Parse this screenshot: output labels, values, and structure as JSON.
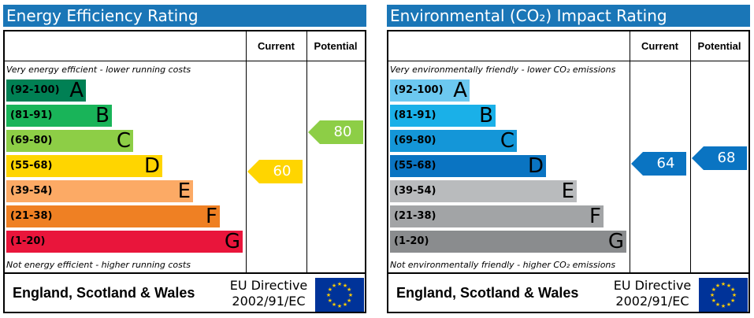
{
  "panels": [
    {
      "title": "Energy Efficiency Rating",
      "col_current": "Current",
      "col_potential": "Potential",
      "top_note": "Very energy efficient - lower running costs",
      "bottom_note": "Not energy efficient - higher running costs",
      "bands": [
        {
          "range": "(92-100)",
          "letter": "A",
          "color": "#008054"
        },
        {
          "range": "(81-91)",
          "letter": "B",
          "color": "#19b459"
        },
        {
          "range": "(69-80)",
          "letter": "C",
          "color": "#8dce46"
        },
        {
          "range": "(55-68)",
          "letter": "D",
          "color": "#ffd500"
        },
        {
          "range": "(39-54)",
          "letter": "E",
          "color": "#fcaa65"
        },
        {
          "range": "(21-38)",
          "letter": "F",
          "color": "#ef8023"
        },
        {
          "range": "(1-20)",
          "letter": "G",
          "color": "#e9153b"
        }
      ],
      "current": {
        "value": "60",
        "color": "#ffd500"
      },
      "potential": {
        "value": "80",
        "color": "#8dce46"
      },
      "country": "England, Scotland & Wales",
      "directive_line1": "EU Directive",
      "directive_line2": "2002/91/EC"
    },
    {
      "title": "Environmental (CO₂) Impact Rating",
      "col_current": "Current",
      "col_potential": "Potential",
      "top_note": "Very environmentally friendly - lower CO₂ emissions",
      "bottom_note": "Not environmentally friendly - higher CO₂ emissions",
      "bands": [
        {
          "range": "(92-100)",
          "letter": "A",
          "color": "#6cc8f0"
        },
        {
          "range": "(81-91)",
          "letter": "B",
          "color": "#1ab0e8"
        },
        {
          "range": "(69-80)",
          "letter": "C",
          "color": "#1496d8"
        },
        {
          "range": "(55-68)",
          "letter": "D",
          "color": "#0a74c2"
        },
        {
          "range": "(39-54)",
          "letter": "E",
          "color": "#b9bbbd"
        },
        {
          "range": "(21-38)",
          "letter": "F",
          "color": "#a2a4a6"
        },
        {
          "range": "(1-20)",
          "letter": "G",
          "color": "#8a8c8e"
        }
      ],
      "current": {
        "value": "64",
        "color": "#0a74c2"
      },
      "potential": {
        "value": "68",
        "color": "#0a74c2"
      },
      "country": "England, Scotland & Wales",
      "directive_line1": "EU Directive",
      "directive_line2": "2002/91/EC"
    }
  ]
}
